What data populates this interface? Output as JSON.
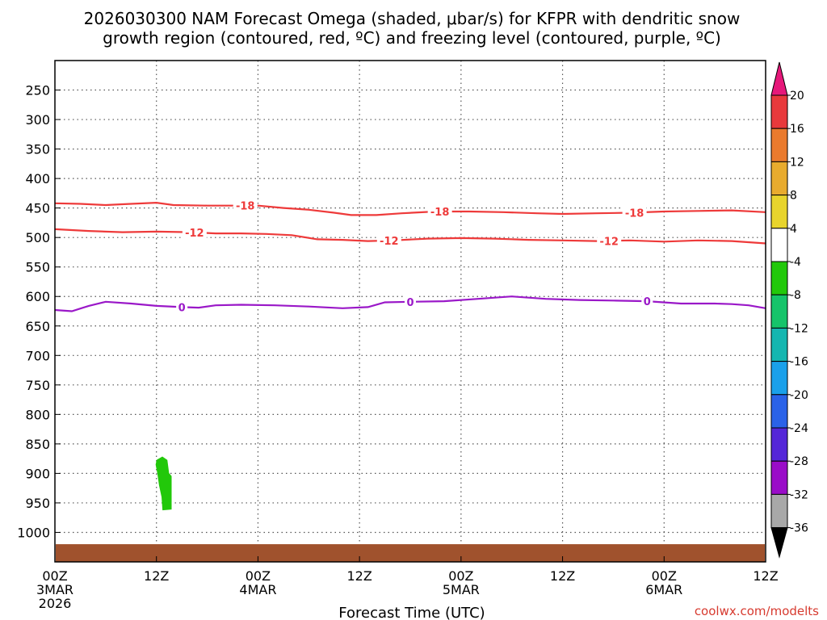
{
  "chart_data": {
    "type": "time-height contour",
    "title_line1": "2026030300 NAM Forecast Omega (shaded, μbar/s) for KFPR with dendritic snow",
    "title_line2": "growth region (contoured, red, ºC) and freezing level (contoured, purple, ºC)",
    "xlabel": "Forecast Time (UTC)",
    "credit": "coolwx.com/modelts",
    "xlim_hours": [
      0,
      84
    ],
    "ylim_hPa": [
      200,
      1050
    ],
    "y_ticks": [
      250,
      300,
      350,
      400,
      450,
      500,
      550,
      600,
      650,
      700,
      750,
      800,
      850,
      900,
      950,
      1000
    ],
    "x_ticks": [
      {
        "hour": 0,
        "line1": "00Z",
        "line2": "3MAR",
        "line3": "2026"
      },
      {
        "hour": 12,
        "line1": "12Z",
        "line2": "",
        "line3": ""
      },
      {
        "hour": 24,
        "line1": "00Z",
        "line2": "4MAR",
        "line3": ""
      },
      {
        "hour": 36,
        "line1": "12Z",
        "line2": "",
        "line3": ""
      },
      {
        "hour": 48,
        "line1": "00Z",
        "line2": "5MAR",
        "line3": ""
      },
      {
        "hour": 60,
        "line1": "12Z",
        "line2": "",
        "line3": ""
      },
      {
        "hour": 72,
        "line1": "00Z",
        "line2": "6MAR",
        "line3": ""
      },
      {
        "hour": 84,
        "line1": "12Z",
        "line2": "",
        "line3": ""
      }
    ],
    "colorbar": {
      "labels": [
        "20",
        "16",
        "12",
        "8",
        "4",
        "-4",
        "-8",
        "-12",
        "-16",
        "-20",
        "-24",
        "-28",
        "-32",
        "-36"
      ],
      "colors": [
        "#e8393c",
        "#ea7a2d",
        "#e8ab2e",
        "#e8d42c",
        "#ffffff",
        "#22c80a",
        "#16c46a",
        "#15b6b0",
        "#1aa0ea",
        "#2a62e8",
        "#5426d8",
        "#9a0cc8",
        "#a8a8a8"
      ],
      "top_arrow_color": "#e6187a",
      "bottom_arrow_color": "#000000"
    },
    "series": [
      {
        "name": "-18 ºC isotherm",
        "color": "#ee3a3a",
        "label": "-18",
        "label_hours": [
          22.5,
          45.5,
          68.5
        ],
        "points": [
          [
            0,
            442
          ],
          [
            3,
            443
          ],
          [
            6,
            445
          ],
          [
            9,
            443
          ],
          [
            12,
            441
          ],
          [
            14,
            445
          ],
          [
            18,
            446
          ],
          [
            22,
            446
          ],
          [
            24,
            446
          ],
          [
            27,
            450
          ],
          [
            30,
            453
          ],
          [
            33,
            458
          ],
          [
            35,
            462
          ],
          [
            38,
            462
          ],
          [
            41,
            459
          ],
          [
            45,
            456
          ],
          [
            49,
            456
          ],
          [
            53,
            457
          ],
          [
            57,
            459
          ],
          [
            60,
            460
          ],
          [
            64,
            459
          ],
          [
            68,
            458
          ],
          [
            72,
            456
          ],
          [
            76,
            455
          ],
          [
            80,
            454
          ],
          [
            84,
            457
          ]
        ]
      },
      {
        "name": "-12 ºC isotherm",
        "color": "#ee3a3a",
        "label": "-12",
        "label_hours": [
          16.5,
          39.5,
          65.5
        ],
        "points": [
          [
            0,
            486
          ],
          [
            4,
            489
          ],
          [
            8,
            491
          ],
          [
            12,
            490
          ],
          [
            16,
            491
          ],
          [
            19,
            493
          ],
          [
            22,
            493
          ],
          [
            25,
            494
          ],
          [
            28,
            496
          ],
          [
            31,
            503
          ],
          [
            34,
            504
          ],
          [
            37,
            506
          ],
          [
            40,
            505
          ],
          [
            44,
            502
          ],
          [
            48,
            501
          ],
          [
            52,
            502
          ],
          [
            56,
            504
          ],
          [
            60,
            505
          ],
          [
            64,
            506
          ],
          [
            68,
            505
          ],
          [
            72,
            507
          ],
          [
            76,
            505
          ],
          [
            80,
            506
          ],
          [
            84,
            510
          ]
        ]
      },
      {
        "name": "0 ºC freezing level",
        "color": "#9a18c8",
        "label": "0",
        "label_hours": [
          15,
          42,
          70
        ],
        "points": [
          [
            0,
            623
          ],
          [
            2,
            625
          ],
          [
            4,
            616
          ],
          [
            6,
            609
          ],
          [
            9,
            612
          ],
          [
            12,
            616
          ],
          [
            15,
            618
          ],
          [
            17,
            619
          ],
          [
            19,
            615
          ],
          [
            22,
            614
          ],
          [
            26,
            615
          ],
          [
            30,
            617
          ],
          [
            34,
            620
          ],
          [
            37,
            618
          ],
          [
            39,
            610
          ],
          [
            42,
            609
          ],
          [
            46,
            608
          ],
          [
            50,
            604
          ],
          [
            54,
            600
          ],
          [
            58,
            604
          ],
          [
            62,
            606
          ],
          [
            66,
            607
          ],
          [
            70,
            608
          ],
          [
            74,
            612
          ],
          [
            78,
            612
          ],
          [
            80,
            613
          ],
          [
            82,
            615
          ],
          [
            84,
            620
          ]
        ]
      }
    ],
    "omega_shaded": [
      {
        "value_range": "-8 to -4",
        "color": "#22c80a",
        "outline": [
          [
            12.1,
            878
          ],
          [
            12.7,
            873
          ],
          [
            13.2,
            878
          ],
          [
            13.4,
            900
          ],
          [
            13.7,
            905
          ],
          [
            13.7,
            960
          ],
          [
            12.8,
            961
          ],
          [
            12.7,
            940
          ],
          [
            12.4,
            920
          ],
          [
            12.2,
            900
          ],
          [
            12.0,
            885
          ]
        ]
      }
    ],
    "ground_band": {
      "color": "#a0522d",
      "from_hPa": 1020,
      "to_hPa": 1050
    }
  }
}
